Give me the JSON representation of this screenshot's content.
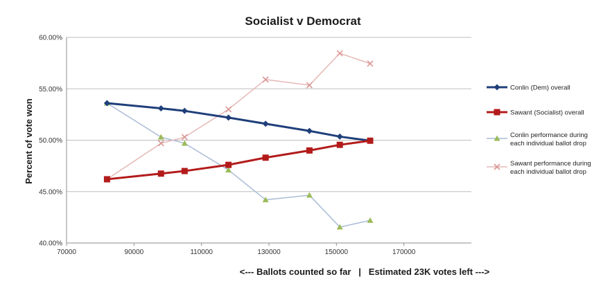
{
  "chart_data": {
    "type": "line",
    "title": "Socialist  v  Democrat",
    "xlabel": "<--- Ballots counted so far   |   Estimated 23K votes left --->",
    "ylabel": "Percent of vote won",
    "xlim": [
      70000,
      190000
    ],
    "ylim": [
      40,
      60
    ],
    "x_ticks": [
      70000,
      90000,
      110000,
      130000,
      150000,
      170000
    ],
    "x_tick_labels": [
      "70000",
      "90000",
      "110000",
      "130000",
      "150000",
      "170000"
    ],
    "y_ticks": [
      40,
      45,
      50,
      55,
      60
    ],
    "y_tick_labels": [
      "40.00%",
      "45.00%",
      "50.00%",
      "55.00%",
      "60.00%"
    ],
    "grid": "horizontal",
    "legend_position": "right",
    "series": [
      {
        "name": "Conlin (Dem) overall",
        "color": "#1f3f7a",
        "marker": "diamond",
        "line_width": 3,
        "points": [
          [
            82000,
            53.6
          ],
          [
            98000,
            53.1
          ],
          [
            105000,
            52.85
          ],
          [
            118000,
            52.2
          ],
          [
            129000,
            51.6
          ],
          [
            142000,
            50.9
          ],
          [
            151000,
            50.35
          ],
          [
            160000,
            49.95
          ]
        ]
      },
      {
        "name": "Sawant (Socialist) overall",
        "color": "#b31b1b",
        "marker": "square",
        "line_width": 3,
        "points": [
          [
            82000,
            46.2
          ],
          [
            98000,
            46.75
          ],
          [
            105000,
            47.0
          ],
          [
            118000,
            47.6
          ],
          [
            129000,
            48.3
          ],
          [
            142000,
            49.0
          ],
          [
            151000,
            49.55
          ],
          [
            160000,
            49.95
          ]
        ]
      },
      {
        "name": "Conlin performance during each individual ballot drop",
        "color": "#a9bcd6",
        "marker_color": "#9bbb59",
        "marker": "triangle",
        "line_width": 1.5,
        "points": [
          [
            82000,
            53.6
          ],
          [
            98000,
            50.3
          ],
          [
            105000,
            49.7
          ],
          [
            118000,
            47.1
          ],
          [
            129000,
            44.2
          ],
          [
            142000,
            44.65
          ],
          [
            151000,
            41.55
          ],
          [
            160000,
            42.2
          ]
        ]
      },
      {
        "name": "Sawant performance during each individual ballot drop",
        "color": "#e6b8b8",
        "marker_color": "#d99694",
        "marker": "x",
        "line_width": 1.5,
        "points": [
          [
            82000,
            46.2
          ],
          [
            98000,
            49.7
          ],
          [
            105000,
            50.3
          ],
          [
            118000,
            53.0
          ],
          [
            129000,
            55.9
          ],
          [
            142000,
            55.35
          ],
          [
            151000,
            58.45
          ],
          [
            160000,
            57.45
          ]
        ]
      }
    ]
  }
}
